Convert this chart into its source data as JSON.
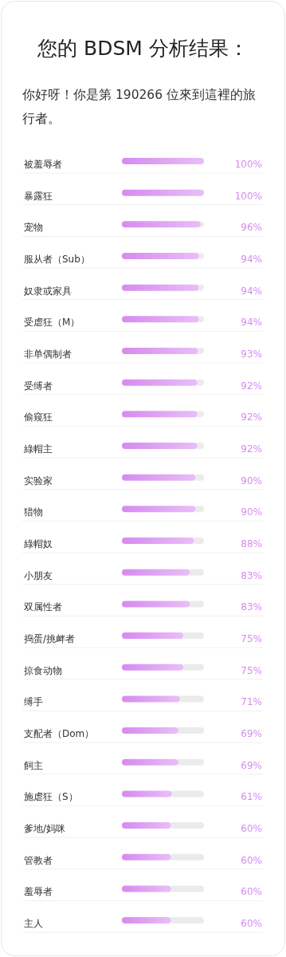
{
  "chart_data": {
    "type": "bar",
    "orientation": "horizontal",
    "title": "您的 BDSM 分析结果：",
    "subtitle": "你好呀！你是第 190266 位來到這裡的旅行者。",
    "categories": [
      "被羞辱者",
      "暴露狂",
      "宠物",
      "服从者（Sub）",
      "奴隶或家具",
      "受虐狂（M）",
      "非单偶制者",
      "受缚者",
      "偷窥狂",
      "綠帽主",
      "实验家",
      "猎物",
      "綠帽奴",
      "小朋友",
      "双属性者",
      "捣蛋/挑衅者",
      "掠食动物",
      "缚手",
      "支配者（Dom）",
      "飼主",
      "施虐狂（S）",
      "爹地/妈咪",
      "管教者",
      "羞辱者",
      "主人"
    ],
    "values": [
      100,
      100,
      96,
      94,
      94,
      94,
      93,
      92,
      92,
      92,
      90,
      90,
      88,
      83,
      83,
      75,
      75,
      71,
      69,
      69,
      61,
      60,
      60,
      60,
      60
    ],
    "value_labels": [
      "100%",
      "100%",
      "96%",
      "94%",
      "94%",
      "94%",
      "93%",
      "92%",
      "92%",
      "92%",
      "90%",
      "90%",
      "88%",
      "83%",
      "83%",
      "75%",
      "75%",
      "71%",
      "69%",
      "69%",
      "61%",
      "60%",
      "60%",
      "60%",
      "60%"
    ],
    "xlim": [
      0,
      100
    ],
    "color": "#d68af0"
  }
}
